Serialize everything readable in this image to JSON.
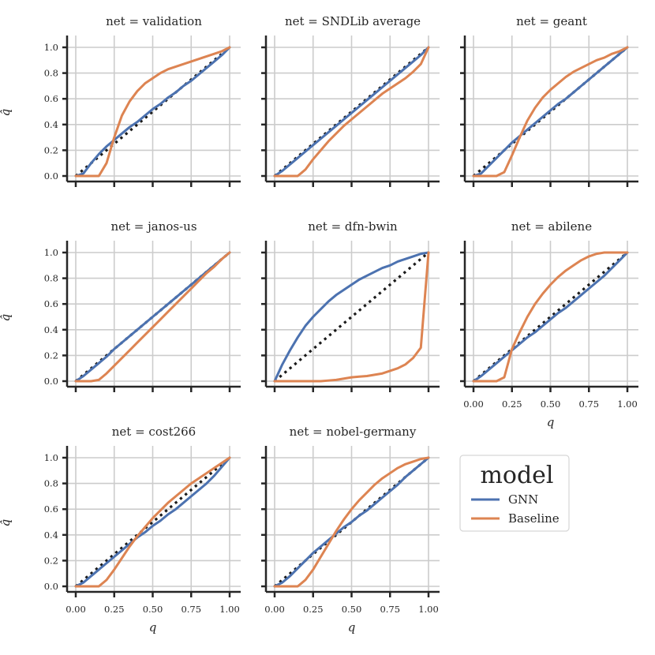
{
  "chart_data": {
    "type": "line",
    "layout": "facet-grid-3-columns",
    "xlabel": "q",
    "ylabel": "q̂",
    "xlim": [
      0,
      1
    ],
    "ylim": [
      0,
      1
    ],
    "x_ticks": [
      "0.00",
      "0.25",
      "0.50",
      "0.75",
      "1.00"
    ],
    "y_ticks": [
      "0.0",
      "0.2",
      "0.4",
      "0.6",
      "0.8",
      "1.0"
    ],
    "grid": true,
    "reference_line": {
      "style": "dotted",
      "color": "#1a1a1a",
      "from": [
        0,
        0
      ],
      "to": [
        1,
        1
      ]
    },
    "legend": {
      "title": "model",
      "position": "bottom-right",
      "entries": [
        {
          "name": "GNN",
          "color": "#4c72b0"
        },
        {
          "name": "Baseline",
          "color": "#dd8452"
        }
      ]
    },
    "x": [
      0,
      0.05,
      0.1,
      0.15,
      0.2,
      0.25,
      0.3,
      0.35,
      0.4,
      0.45,
      0.5,
      0.55,
      0.6,
      0.65,
      0.7,
      0.75,
      0.8,
      0.85,
      0.9,
      0.95,
      1.0
    ],
    "panels": [
      {
        "title": "net = validation",
        "series": [
          {
            "name": "GNN",
            "values": [
              0,
              0.02,
              0.1,
              0.17,
              0.23,
              0.28,
              0.33,
              0.38,
              0.42,
              0.47,
              0.52,
              0.56,
              0.61,
              0.65,
              0.7,
              0.74,
              0.79,
              0.84,
              0.89,
              0.94,
              1.0
            ]
          },
          {
            "name": "Baseline",
            "values": [
              0,
              0,
              0,
              0,
              0.1,
              0.3,
              0.47,
              0.58,
              0.66,
              0.72,
              0.76,
              0.8,
              0.83,
              0.85,
              0.87,
              0.89,
              0.91,
              0.93,
              0.95,
              0.97,
              1.0
            ]
          }
        ]
      },
      {
        "title": "net = SNDLib average",
        "series": [
          {
            "name": "GNN",
            "values": [
              0,
              0.04,
              0.09,
              0.14,
              0.19,
              0.24,
              0.29,
              0.34,
              0.39,
              0.44,
              0.49,
              0.54,
              0.59,
              0.64,
              0.69,
              0.74,
              0.79,
              0.84,
              0.89,
              0.94,
              1.0
            ]
          },
          {
            "name": "Baseline",
            "values": [
              0,
              0,
              0,
              0,
              0.05,
              0.13,
              0.2,
              0.27,
              0.33,
              0.39,
              0.44,
              0.49,
              0.54,
              0.59,
              0.64,
              0.68,
              0.72,
              0.76,
              0.81,
              0.87,
              1.0
            ]
          }
        ]
      },
      {
        "title": "net = geant",
        "series": [
          {
            "name": "GNN",
            "values": [
              0,
              0.02,
              0.08,
              0.14,
              0.2,
              0.26,
              0.31,
              0.36,
              0.41,
              0.46,
              0.51,
              0.56,
              0.6,
              0.65,
              0.7,
              0.75,
              0.8,
              0.85,
              0.9,
              0.95,
              1.0
            ]
          },
          {
            "name": "Baseline",
            "values": [
              0,
              0,
              0,
              0,
              0.03,
              0.16,
              0.3,
              0.43,
              0.53,
              0.61,
              0.67,
              0.72,
              0.77,
              0.81,
              0.84,
              0.87,
              0.9,
              0.92,
              0.95,
              0.97,
              1.0
            ]
          }
        ]
      },
      {
        "title": "net = janos-us",
        "series": [
          {
            "name": "GNN",
            "values": [
              0,
              0.04,
              0.09,
              0.14,
              0.19,
              0.25,
              0.3,
              0.35,
              0.4,
              0.45,
              0.5,
              0.55,
              0.6,
              0.65,
              0.7,
              0.75,
              0.8,
              0.85,
              0.9,
              0.95,
              1.0
            ]
          },
          {
            "name": "Baseline",
            "values": [
              0,
              0,
              0,
              0.01,
              0.06,
              0.12,
              0.18,
              0.24,
              0.3,
              0.36,
              0.42,
              0.48,
              0.54,
              0.6,
              0.66,
              0.72,
              0.78,
              0.84,
              0.89,
              0.95,
              1.0
            ]
          }
        ]
      },
      {
        "title": "net = dfn-bwin",
        "series": [
          {
            "name": "GNN",
            "values": [
              0,
              0.13,
              0.24,
              0.34,
              0.43,
              0.5,
              0.56,
              0.62,
              0.67,
              0.71,
              0.75,
              0.79,
              0.82,
              0.85,
              0.88,
              0.9,
              0.93,
              0.95,
              0.97,
              0.99,
              1.0
            ]
          },
          {
            "name": "Baseline",
            "values": [
              0,
              0,
              0,
              0,
              0,
              0,
              0,
              0.005,
              0.01,
              0.02,
              0.03,
              0.035,
              0.04,
              0.05,
              0.06,
              0.08,
              0.1,
              0.13,
              0.18,
              0.26,
              1.0
            ]
          }
        ]
      },
      {
        "title": "net = abilene",
        "series": [
          {
            "name": "GNN",
            "values": [
              0,
              0.04,
              0.09,
              0.14,
              0.19,
              0.24,
              0.29,
              0.34,
              0.38,
              0.43,
              0.48,
              0.53,
              0.57,
              0.62,
              0.67,
              0.72,
              0.77,
              0.82,
              0.88,
              0.94,
              1.0
            ]
          },
          {
            "name": "Baseline",
            "values": [
              0,
              0,
              0,
              0,
              0.03,
              0.25,
              0.38,
              0.5,
              0.6,
              0.68,
              0.75,
              0.81,
              0.86,
              0.9,
              0.94,
              0.97,
              0.99,
              1.0,
              1.0,
              1.0,
              1.0
            ]
          }
        ]
      },
      {
        "title": "net = cost266",
        "series": [
          {
            "name": "GNN",
            "values": [
              0,
              0.03,
              0.08,
              0.13,
              0.18,
              0.23,
              0.28,
              0.33,
              0.38,
              0.42,
              0.47,
              0.51,
              0.56,
              0.6,
              0.65,
              0.7,
              0.75,
              0.8,
              0.86,
              0.93,
              1.0
            ]
          },
          {
            "name": "Baseline",
            "values": [
              0,
              0,
              0,
              0,
              0.05,
              0.13,
              0.22,
              0.31,
              0.39,
              0.46,
              0.53,
              0.59,
              0.65,
              0.7,
              0.75,
              0.8,
              0.84,
              0.88,
              0.92,
              0.96,
              1.0
            ]
          }
        ]
      },
      {
        "title": "net = nobel-germany",
        "series": [
          {
            "name": "GNN",
            "values": [
              0,
              0.03,
              0.08,
              0.14,
              0.2,
              0.26,
              0.31,
              0.36,
              0.41,
              0.46,
              0.5,
              0.55,
              0.59,
              0.64,
              0.69,
              0.74,
              0.79,
              0.85,
              0.9,
              0.95,
              1.0
            ]
          },
          {
            "name": "Baseline",
            "values": [
              0,
              0,
              0,
              0,
              0.05,
              0.13,
              0.23,
              0.33,
              0.43,
              0.52,
              0.6,
              0.67,
              0.73,
              0.79,
              0.84,
              0.88,
              0.92,
              0.95,
              0.97,
              0.99,
              1.0
            ]
          }
        ]
      }
    ]
  }
}
